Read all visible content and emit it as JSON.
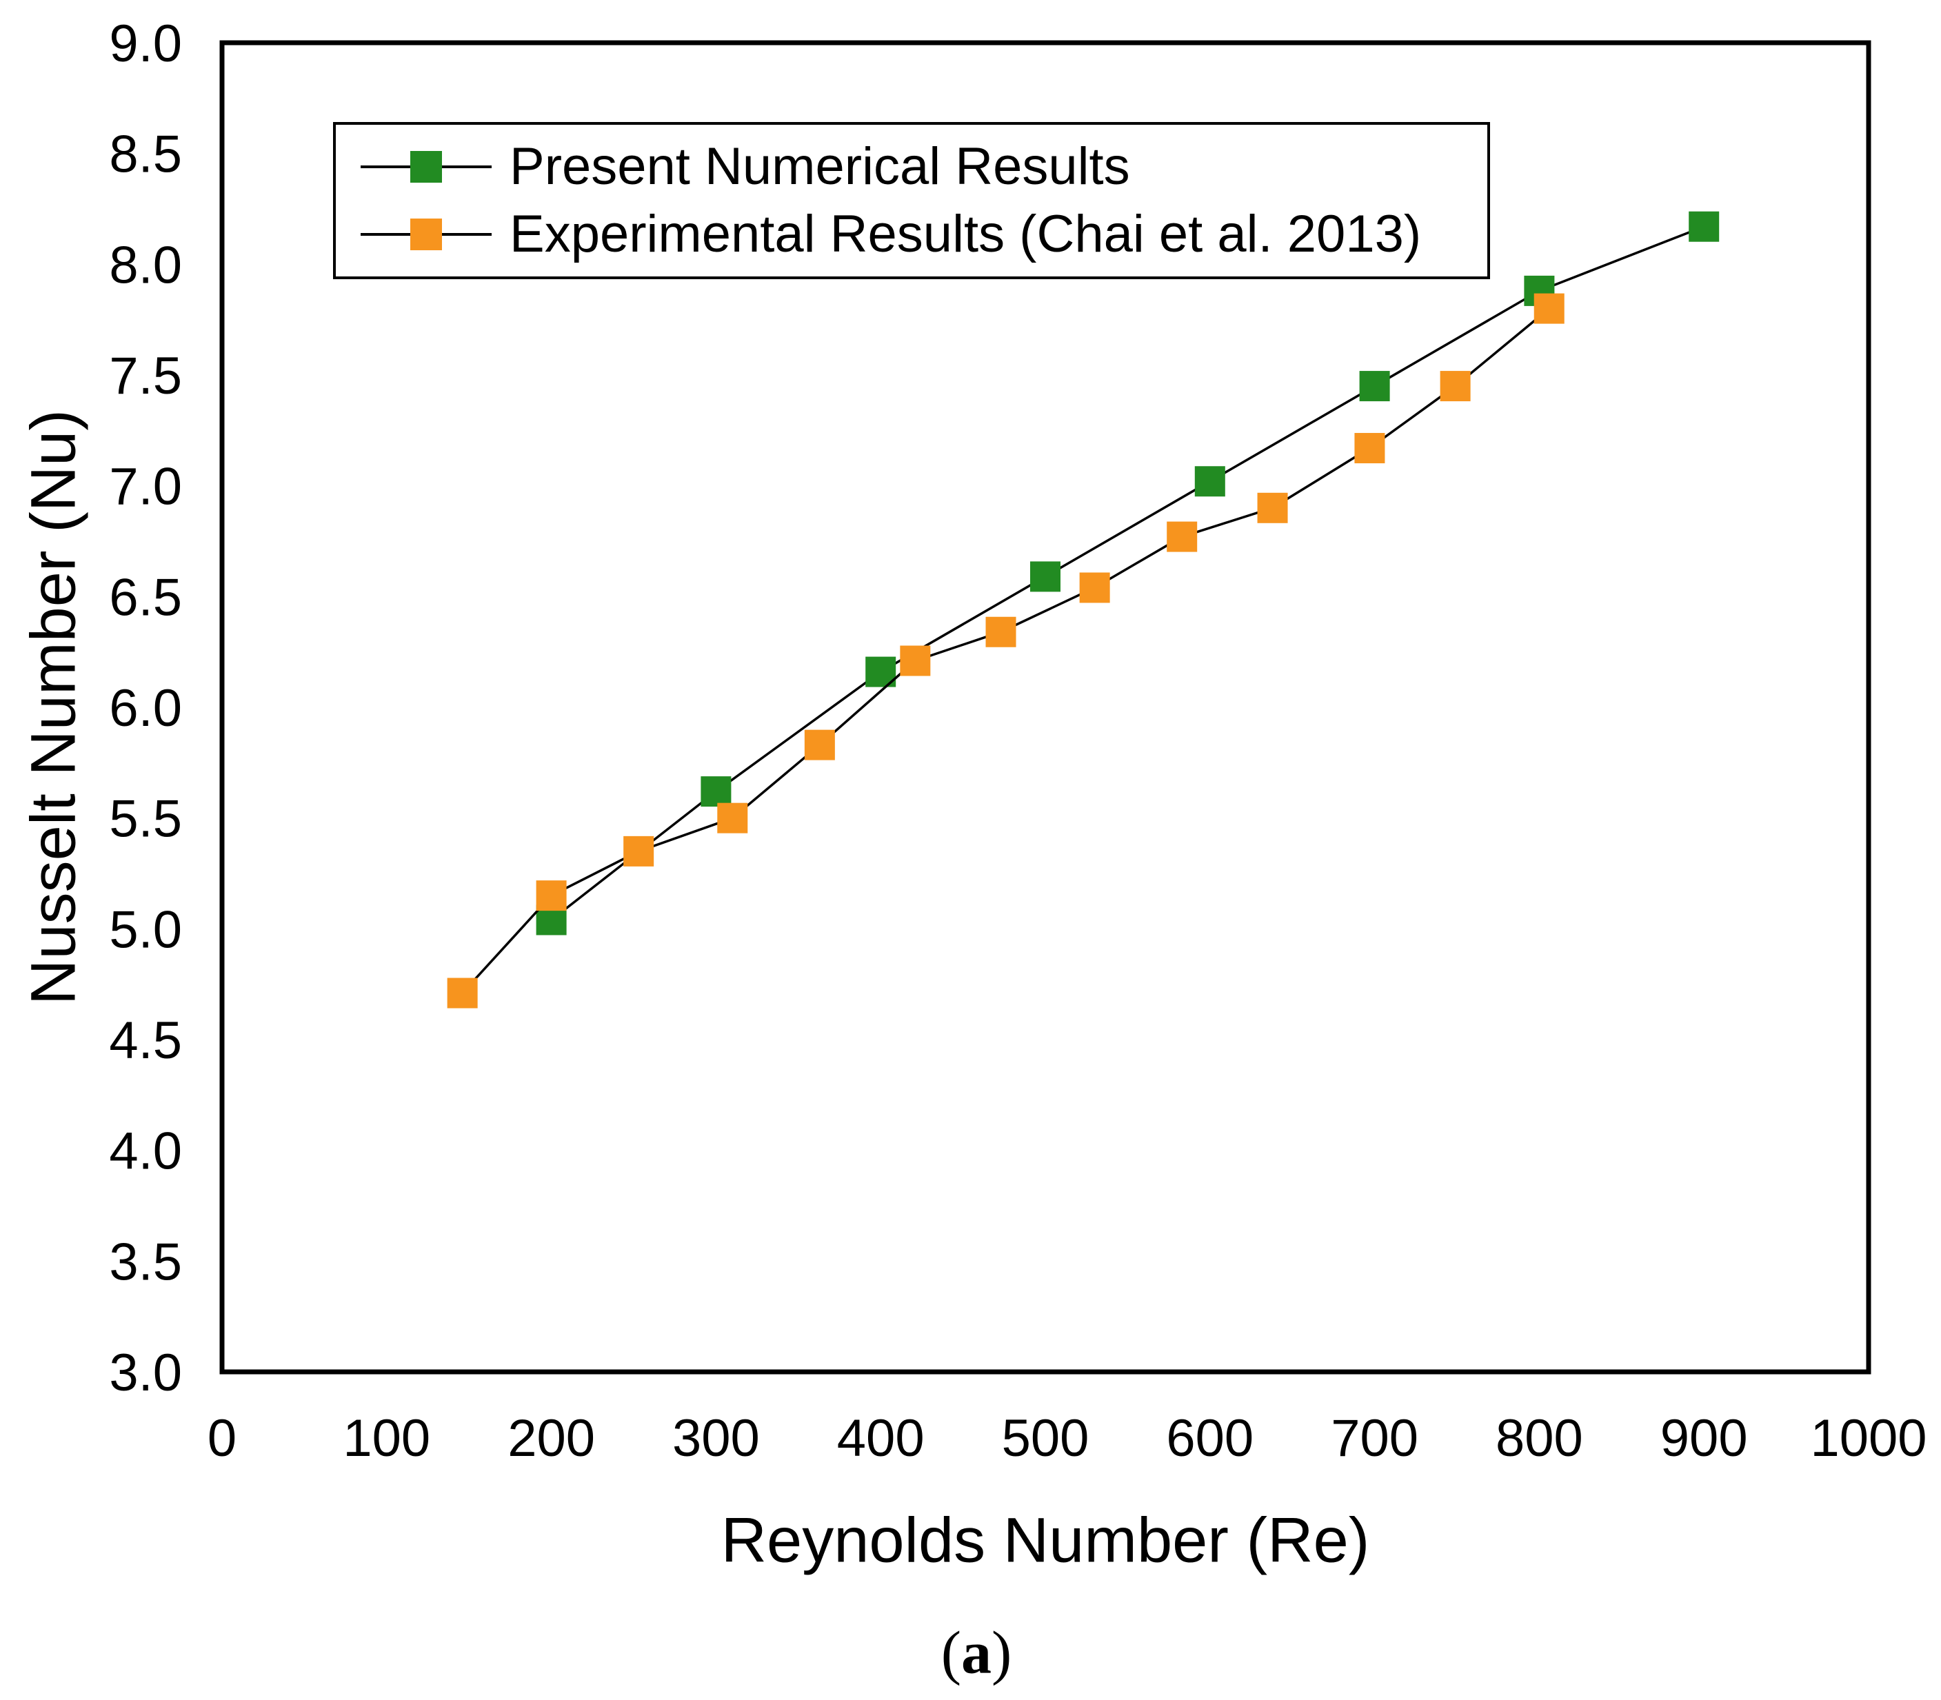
{
  "figure": {
    "caption": {
      "open": "(",
      "letter": "a",
      "close": ")"
    }
  },
  "chart_data": {
    "type": "line",
    "title": "",
    "xlabel": "Reynolds Number (Re)",
    "ylabel": "Nusselt Number (Nu)",
    "xlim": [
      0,
      1000
    ],
    "ylim": [
      3.0,
      9.0
    ],
    "grid": false,
    "legend_position": "top-left-inside",
    "x_ticks": [
      "0",
      "100",
      "200",
      "300",
      "400",
      "500",
      "600",
      "700",
      "800",
      "900",
      "1000"
    ],
    "y_ticks": [
      "3.0",
      "3.5",
      "4.0",
      "4.5",
      "5.0",
      "5.5",
      "6.0",
      "6.5",
      "7.0",
      "7.5",
      "8.0",
      "8.5",
      "9.0"
    ],
    "line_color": "#000000",
    "series": [
      {
        "name": "Present Numerical Results",
        "marker": "square",
        "color": "#228B22",
        "points": [
          [
            200,
            5.04
          ],
          [
            300,
            5.62
          ],
          [
            400,
            6.16
          ],
          [
            500,
            6.59
          ],
          [
            600,
            7.02
          ],
          [
            700,
            7.45
          ],
          [
            800,
            7.88
          ],
          [
            900,
            8.17
          ]
        ]
      },
      {
        "name": "Experimental Results (Chai et al. 2013)",
        "marker": "square",
        "color": "#F7941E",
        "points": [
          [
            146,
            4.71
          ],
          [
            200,
            5.15
          ],
          [
            253,
            5.35
          ],
          [
            310,
            5.5
          ],
          [
            363,
            5.83
          ],
          [
            421,
            6.21
          ],
          [
            473,
            6.34
          ],
          [
            530,
            6.54
          ],
          [
            583,
            6.77
          ],
          [
            638,
            6.9
          ],
          [
            697,
            7.17
          ],
          [
            749,
            7.45
          ],
          [
            806,
            7.8
          ]
        ]
      }
    ]
  }
}
